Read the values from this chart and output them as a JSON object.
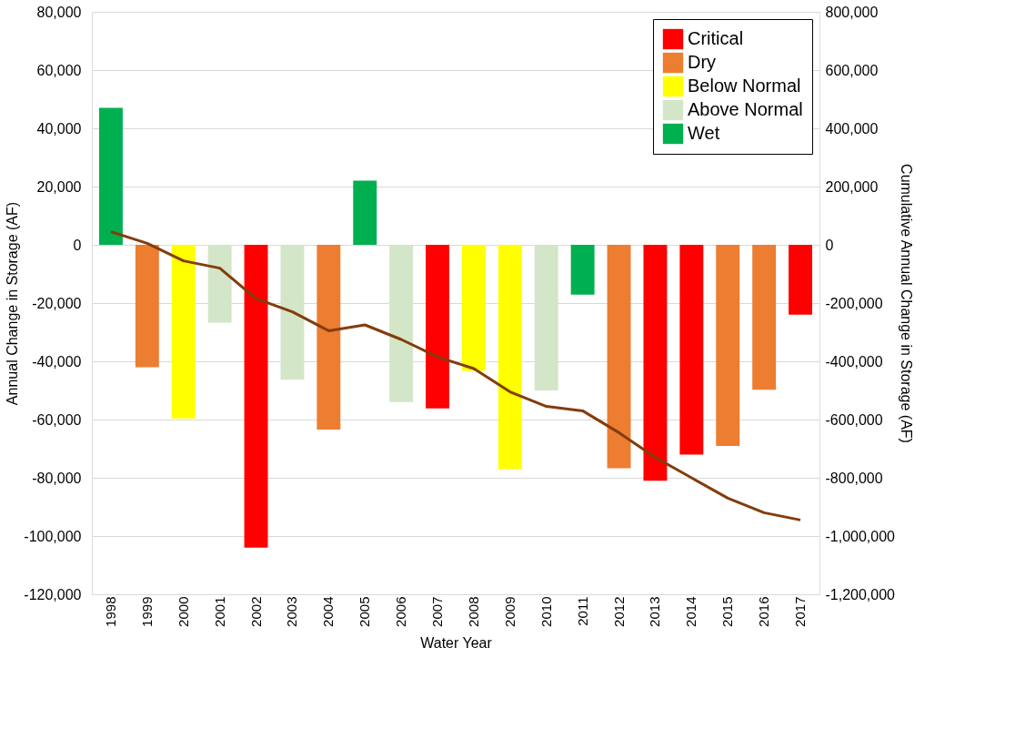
{
  "chart_data": {
    "type": "bar",
    "xlabel": "Water Year",
    "ylabel": "Annual Change in Storage (AF)",
    "y2label": "Cumulative Annual Change in Storage (AF)",
    "categories": [
      "1998",
      "1999",
      "2000",
      "2001",
      "2002",
      "2003",
      "2004",
      "2005",
      "2006",
      "2007",
      "2008",
      "2009",
      "2010",
      "2011",
      "2012",
      "2013",
      "2014",
      "2015",
      "2016",
      "2017"
    ],
    "series": [
      {
        "name": "Critical",
        "color": "#ff0000",
        "values": [
          null,
          null,
          null,
          null,
          -104000,
          null,
          null,
          null,
          null,
          -56200,
          null,
          null,
          null,
          null,
          null,
          -81000,
          -72000,
          null,
          null,
          -24000
        ]
      },
      {
        "name": "Dry",
        "color": "#ed7d31",
        "values": [
          null,
          -42000,
          null,
          null,
          null,
          null,
          -63400,
          null,
          null,
          null,
          null,
          null,
          null,
          null,
          -76700,
          null,
          null,
          -69100,
          -49800,
          null
        ]
      },
      {
        "name": "Below Normal",
        "color": "#ffff00",
        "values": [
          null,
          null,
          -59600,
          null,
          null,
          null,
          null,
          null,
          null,
          null,
          -43300,
          -77000,
          null,
          null,
          null,
          null,
          null,
          null,
          null,
          null
        ]
      },
      {
        "name": "Above Normal",
        "color": "#d3e6c8",
        "values": [
          null,
          null,
          null,
          -26700,
          null,
          -46300,
          null,
          null,
          -54000,
          null,
          null,
          null,
          -50000,
          null,
          null,
          null,
          null,
          null,
          null,
          null
        ]
      },
      {
        "name": "Wet",
        "color": "#00b050",
        "values": [
          47000,
          null,
          null,
          null,
          null,
          null,
          null,
          22000,
          null,
          null,
          null,
          null,
          null,
          -17100,
          null,
          null,
          null,
          null,
          null,
          null
        ]
      },
      {
        "type": "line",
        "axis": "y2",
        "color": "#843c0c",
        "values": [
          45000,
          5000,
          -55000,
          -80000,
          -185000,
          -230000,
          -295000,
          -275000,
          -325000,
          -385000,
          -425000,
          -505000,
          -555000,
          -570000,
          -645000,
          -730000,
          -800000,
          -870000,
          -920000,
          -945000
        ]
      }
    ],
    "ylim": [
      -120000,
      80000
    ],
    "yticks": [
      {
        "value": -120000,
        "label": "-120,000"
      },
      {
        "value": -100000,
        "label": "-100,000"
      },
      {
        "value": -80000,
        "label": "-80,000"
      },
      {
        "value": -60000,
        "label": "-60,000"
      },
      {
        "value": -40000,
        "label": "-40,000"
      },
      {
        "value": -20000,
        "label": "-20,000"
      },
      0,
      {
        "value": 20000,
        "label": "20,000"
      },
      {
        "value": 40000,
        "label": "40,000"
      },
      {
        "value": 60000,
        "label": "60,000"
      },
      {
        "value": 80000,
        "label": "80,000"
      }
    ],
    "y2lim": [
      -1200000,
      800000
    ],
    "y2ticks": [
      {
        "value": -1200000,
        "label": "-1,200,000"
      },
      {
        "value": -1000000,
        "label": "-1,000,000"
      },
      {
        "value": -800000,
        "label": "-800,000"
      },
      {
        "value": -600000,
        "label": "-600,000"
      },
      {
        "value": -400000,
        "label": "-400,000"
      },
      {
        "value": -200000,
        "label": "-200,000"
      },
      0,
      {
        "value": 200000,
        "label": "200,000"
      },
      {
        "value": 400000,
        "label": "400,000"
      },
      {
        "value": 600000,
        "label": "600,000"
      },
      {
        "value": 800000,
        "label": "800,000"
      }
    ],
    "grid": "y",
    "legend": "top right",
    "line_style": "solid",
    "marker": "none"
  }
}
